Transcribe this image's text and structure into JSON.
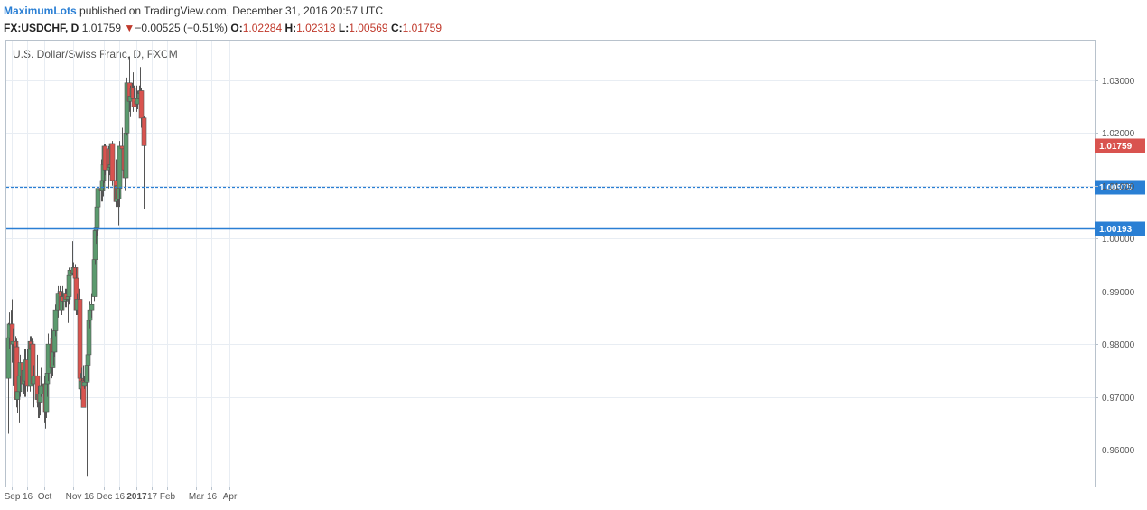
{
  "header": {
    "author": "MaximumLots",
    "published": "published on TradingView.com, December 31, 2016 20:57 UTC",
    "symbol": "FX:USDCHF, D",
    "last": "1.01759",
    "down_arrow": "▼",
    "change": "−0.00525 (−0.51%)",
    "o_label": "O:",
    "o_value": "1.02284",
    "h_label": "H:",
    "h_value": "1.02318",
    "l_label": "L:",
    "l_value": "1.00569",
    "c_label": "C:",
    "c_value": "1.01759"
  },
  "chart_data": {
    "type": "candlestick",
    "title": "U.S. Dollar/Swiss Franc, D, FXCM",
    "ylim": [
      0.953,
      1.0375
    ],
    "y_ticks": [
      0.96,
      0.97,
      0.98,
      0.99,
      1.0,
      1.01,
      1.02,
      1.03
    ],
    "x_ticks": [
      "Sep",
      "16",
      "Oct",
      "Nov",
      "16",
      "Dec",
      "16",
      "2017",
      "17",
      "Feb",
      "Mar",
      "16",
      "Apr"
    ],
    "x_tick_dates": [
      "2016-09-01",
      "2016-09-16",
      "2016-10-03",
      "2016-11-01",
      "2016-11-16",
      "2016-12-01",
      "2016-12-16",
      "2017-01-02",
      "2017-01-17",
      "2017-02-01",
      "2017-03-01",
      "2017-03-16",
      "2017-04-03"
    ],
    "levels": [
      {
        "value": 1.00975,
        "label": "1.00975",
        "style": "dashed",
        "color": "#2a7fd4"
      },
      {
        "value": 1.00193,
        "label": "1.00193",
        "style": "solid",
        "color": "#2a7fd4"
      }
    ],
    "last_price": {
      "value": 1.01759,
      "label": "1.01759",
      "color": "#d9534f"
    },
    "colors": {
      "up": "#5b9a6e",
      "down": "#d9534f",
      "wick": "#555555",
      "grid": "#e8edf3",
      "axis": "#b8c2cc"
    },
    "candles": [
      {
        "date": "2016-08-29",
        "o": 0.9735,
        "h": 0.984,
        "l": 0.963,
        "c": 0.9812
      },
      {
        "date": "2016-08-30",
        "o": 0.9812,
        "h": 0.986,
        "l": 0.979,
        "c": 0.9838
      },
      {
        "date": "2016-08-31",
        "o": 0.9838,
        "h": 0.9865,
        "l": 0.981,
        "c": 0.9838
      },
      {
        "date": "2016-09-01",
        "o": 0.9838,
        "h": 0.9885,
        "l": 0.9765,
        "c": 0.98
      },
      {
        "date": "2016-09-02",
        "o": 0.98,
        "h": 0.983,
        "l": 0.972,
        "c": 0.9805
      },
      {
        "date": "2016-09-05",
        "o": 0.9805,
        "h": 0.9815,
        "l": 0.977,
        "c": 0.9795
      },
      {
        "date": "2016-09-06",
        "o": 0.9795,
        "h": 0.981,
        "l": 0.968,
        "c": 0.9695
      },
      {
        "date": "2016-09-07",
        "o": 0.9695,
        "h": 0.973,
        "l": 0.967,
        "c": 0.971
      },
      {
        "date": "2016-09-08",
        "o": 0.971,
        "h": 0.9765,
        "l": 0.965,
        "c": 0.974
      },
      {
        "date": "2016-09-09",
        "o": 0.974,
        "h": 0.978,
        "l": 0.97,
        "c": 0.9765
      },
      {
        "date": "2016-09-12",
        "o": 0.9765,
        "h": 0.9795,
        "l": 0.9715,
        "c": 0.9725
      },
      {
        "date": "2016-09-13",
        "o": 0.9725,
        "h": 0.9765,
        "l": 0.9705,
        "c": 0.975
      },
      {
        "date": "2016-09-14",
        "o": 0.975,
        "h": 0.979,
        "l": 0.97,
        "c": 0.973
      },
      {
        "date": "2016-09-15",
        "o": 0.973,
        "h": 0.979,
        "l": 0.97,
        "c": 0.977
      },
      {
        "date": "2016-09-16",
        "o": 0.977,
        "h": 0.979,
        "l": 0.971,
        "c": 0.972
      },
      {
        "date": "2016-09-19",
        "o": 0.972,
        "h": 0.9815,
        "l": 0.971,
        "c": 0.9805
      },
      {
        "date": "2016-09-20",
        "o": 0.9805,
        "h": 0.9815,
        "l": 0.977,
        "c": 0.979
      },
      {
        "date": "2016-09-21",
        "o": 0.979,
        "h": 0.981,
        "l": 0.976,
        "c": 0.98
      },
      {
        "date": "2016-09-22",
        "o": 0.98,
        "h": 0.9805,
        "l": 0.9715,
        "c": 0.9725
      },
      {
        "date": "2016-09-23",
        "o": 0.9725,
        "h": 0.976,
        "l": 0.968,
        "c": 0.974
      },
      {
        "date": "2016-09-26",
        "o": 0.974,
        "h": 0.978,
        "l": 0.968,
        "c": 0.9695
      },
      {
        "date": "2016-09-27",
        "o": 0.9695,
        "h": 0.972,
        "l": 0.966,
        "c": 0.9705
      },
      {
        "date": "2016-09-28",
        "o": 0.9705,
        "h": 0.972,
        "l": 0.966,
        "c": 0.969
      },
      {
        "date": "2016-09-29",
        "o": 0.969,
        "h": 0.972,
        "l": 0.9665,
        "c": 0.9705
      },
      {
        "date": "2016-09-30",
        "o": 0.9705,
        "h": 0.9755,
        "l": 0.97,
        "c": 0.972
      },
      {
        "date": "2016-10-03",
        "o": 0.972,
        "h": 0.974,
        "l": 0.965,
        "c": 0.9725
      },
      {
        "date": "2016-10-04",
        "o": 0.9725,
        "h": 0.973,
        "l": 0.964,
        "c": 0.9672
      },
      {
        "date": "2016-10-05",
        "o": 0.9672,
        "h": 0.973,
        "l": 0.966,
        "c": 0.9725
      },
      {
        "date": "2016-10-06",
        "o": 0.9725,
        "h": 0.976,
        "l": 0.97,
        "c": 0.9745
      },
      {
        "date": "2016-10-07",
        "o": 0.9745,
        "h": 0.982,
        "l": 0.973,
        "c": 0.98
      },
      {
        "date": "2016-10-10",
        "o": 0.98,
        "h": 0.983,
        "l": 0.9735,
        "c": 0.9755
      },
      {
        "date": "2016-10-11",
        "o": 0.9755,
        "h": 0.9815,
        "l": 0.974,
        "c": 0.981
      },
      {
        "date": "2016-10-12",
        "o": 0.981,
        "h": 0.9835,
        "l": 0.976,
        "c": 0.9785
      },
      {
        "date": "2016-10-13",
        "o": 0.9785,
        "h": 0.983,
        "l": 0.9775,
        "c": 0.9825
      },
      {
        "date": "2016-10-14",
        "o": 0.9825,
        "h": 0.9875,
        "l": 0.9815,
        "c": 0.9865
      },
      {
        "date": "2016-10-17",
        "o": 0.9865,
        "h": 0.991,
        "l": 0.985,
        "c": 0.9895
      },
      {
        "date": "2016-10-18",
        "o": 0.9895,
        "h": 0.991,
        "l": 0.988,
        "c": 0.99
      },
      {
        "date": "2016-10-19",
        "o": 0.99,
        "h": 0.991,
        "l": 0.9855,
        "c": 0.9865
      },
      {
        "date": "2016-10-20",
        "o": 0.9865,
        "h": 0.99,
        "l": 0.9855,
        "c": 0.989
      },
      {
        "date": "2016-10-21",
        "o": 0.989,
        "h": 0.991,
        "l": 0.9865,
        "c": 0.988
      },
      {
        "date": "2016-10-24",
        "o": 0.988,
        "h": 0.9905,
        "l": 0.987,
        "c": 0.9895
      },
      {
        "date": "2016-10-25",
        "o": 0.9895,
        "h": 0.9905,
        "l": 0.987,
        "c": 0.9885
      },
      {
        "date": "2016-10-26",
        "o": 0.9885,
        "h": 0.99,
        "l": 0.984,
        "c": 0.989
      },
      {
        "date": "2016-10-27",
        "o": 0.989,
        "h": 0.9945,
        "l": 0.9875,
        "c": 0.993
      },
      {
        "date": "2016-10-28",
        "o": 0.993,
        "h": 0.9955,
        "l": 0.9915,
        "c": 0.994
      },
      {
        "date": "2016-10-31",
        "o": 0.994,
        "h": 0.9995,
        "l": 0.993,
        "c": 0.9935
      },
      {
        "date": "2016-11-01",
        "o": 0.9935,
        "h": 0.9955,
        "l": 0.9925,
        "c": 0.9945
      },
      {
        "date": "2016-11-02",
        "o": 0.9945,
        "h": 0.995,
        "l": 0.9915,
        "c": 0.9925
      },
      {
        "date": "2016-11-03",
        "o": 0.9925,
        "h": 0.9945,
        "l": 0.9855,
        "c": 0.9865
      },
      {
        "date": "2016-11-04",
        "o": 0.9865,
        "h": 0.9895,
        "l": 0.9855,
        "c": 0.9885
      },
      {
        "date": "2016-11-07",
        "o": 0.9885,
        "h": 0.9905,
        "l": 0.972,
        "c": 0.9735
      },
      {
        "date": "2016-11-08",
        "o": 0.9735,
        "h": 0.9745,
        "l": 0.9695,
        "c": 0.9715
      },
      {
        "date": "2016-11-09",
        "o": 0.9715,
        "h": 0.9755,
        "l": 0.97,
        "c": 0.973
      },
      {
        "date": "2016-11-10",
        "o": 0.973,
        "h": 0.976,
        "l": 0.968,
        "c": 0.968
      },
      {
        "date": "2016-11-11",
        "o": 0.972,
        "h": 0.974,
        "l": 0.9715,
        "c": 0.9728
      },
      {
        "date": "2016-11-14",
        "o": 0.9728,
        "h": 0.977,
        "l": 0.955,
        "c": 0.976
      },
      {
        "date": "2016-11-15",
        "o": 0.976,
        "h": 0.979,
        "l": 0.973,
        "c": 0.978
      },
      {
        "date": "2016-11-16",
        "o": 0.978,
        "h": 0.9855,
        "l": 0.977,
        "c": 0.9845
      },
      {
        "date": "2016-11-17",
        "o": 0.9845,
        "h": 0.988,
        "l": 0.983,
        "c": 0.9865
      },
      {
        "date": "2016-11-18",
        "o": 0.9865,
        "h": 0.9895,
        "l": 0.985,
        "c": 0.9875
      },
      {
        "date": "2016-11-21",
        "o": 0.989,
        "h": 0.9975,
        "l": 0.988,
        "c": 0.996
      },
      {
        "date": "2016-11-22",
        "o": 0.996,
        "h": 1.0025,
        "l": 0.995,
        "c": 1.0015
      },
      {
        "date": "2016-11-23",
        "o": 1.0015,
        "h": 1.004,
        "l": 0.999,
        "c": 1.002
      },
      {
        "date": "2016-11-24",
        "o": 1.002,
        "h": 1.008,
        "l": 1.0005,
        "c": 1.006
      },
      {
        "date": "2016-11-25",
        "o": 1.006,
        "h": 1.011,
        "l": 1.0055,
        "c": 1.0095
      },
      {
        "date": "2016-11-28",
        "o": 1.0095,
        "h": 1.015,
        "l": 1.007,
        "c": 1.009
      },
      {
        "date": "2016-11-29",
        "o": 1.009,
        "h": 1.012,
        "l": 1.007,
        "c": 1.011
      },
      {
        "date": "2016-11-30",
        "o": 1.011,
        "h": 1.015,
        "l": 1.008,
        "c": 1.014
      },
      {
        "date": "2016-12-01",
        "o": 1.014,
        "h": 1.018,
        "l": 1.0105,
        "c": 1.0175
      },
      {
        "date": "2016-12-02",
        "o": 1.0175,
        "h": 1.018,
        "l": 1.012,
        "c": 1.013
      },
      {
        "date": "2016-12-05",
        "o": 1.013,
        "h": 1.0175,
        "l": 1.0095,
        "c": 1.017
      },
      {
        "date": "2016-12-06",
        "o": 1.017,
        "h": 1.018,
        "l": 1.012,
        "c": 1.0135
      },
      {
        "date": "2016-12-07",
        "o": 1.0135,
        "h": 1.0165,
        "l": 1.0115,
        "c": 1.014
      },
      {
        "date": "2016-12-08",
        "o": 1.014,
        "h": 1.018,
        "l": 1.0125,
        "c": 1.018
      },
      {
        "date": "2016-12-09",
        "o": 1.018,
        "h": 1.0185,
        "l": 1.01,
        "c": 1.011
      },
      {
        "date": "2016-12-12",
        "o": 1.011,
        "h": 1.015,
        "l": 1.006,
        "c": 1.007
      },
      {
        "date": "2016-12-13",
        "o": 1.007,
        "h": 1.011,
        "l": 1.006,
        "c": 1.01
      },
      {
        "date": "2016-12-14",
        "o": 1.01,
        "h": 1.013,
        "l": 1.006,
        "c": 1.0075
      },
      {
        "date": "2016-12-15",
        "o": 1.0075,
        "h": 1.011,
        "l": 1.0025,
        "c": 1.0095
      },
      {
        "date": "2016-12-16",
        "o": 1.0095,
        "h": 1.0185,
        "l": 1.006,
        "c": 1.0175
      },
      {
        "date": "2016-12-19",
        "o": 1.0175,
        "h": 1.021,
        "l": 1.016,
        "c": 1.017
      },
      {
        "date": "2016-12-20",
        "o": 1.017,
        "h": 1.0195,
        "l": 1.0125,
        "c": 1.013
      },
      {
        "date": "2016-12-21",
        "o": 1.013,
        "h": 1.0155,
        "l": 1.009,
        "c": 1.0115
      },
      {
        "date": "2016-12-22",
        "o": 1.0115,
        "h": 1.021,
        "l": 1.0095,
        "c": 1.02
      },
      {
        "date": "2016-12-23",
        "o": 1.02,
        "h": 1.0305,
        "l": 1.0195,
        "c": 1.0295
      },
      {
        "date": "2016-12-26",
        "o": 1.0295,
        "h": 1.0345,
        "l": 1.024,
        "c": 1.026
      },
      {
        "date": "2016-12-27",
        "o": 1.026,
        "h": 1.029,
        "l": 1.023,
        "c": 1.027
      },
      {
        "date": "2016-12-28",
        "o": 1.027,
        "h": 1.0295,
        "l": 1.025,
        "c": 1.0285
      },
      {
        "date": "2016-12-29",
        "o": 1.0285,
        "h": 1.0315,
        "l": 1.024,
        "c": 1.0265
      },
      {
        "date": "2016-12-30",
        "o": 1.0265,
        "h": 1.029,
        "l": 1.025,
        "c": 1.025
      },
      {
        "date": "2017-01-02",
        "o": 1.026,
        "h": 1.029,
        "l": 1.024,
        "c": 1.0255
      },
      {
        "date": "2017-01-03",
        "o": 1.0255,
        "h": 1.028,
        "l": 1.0245,
        "c": 1.0265
      },
      {
        "date": "2017-01-04",
        "o": 1.0265,
        "h": 1.029,
        "l": 1.025,
        "c": 1.0275
      },
      {
        "date": "2017-01-05",
        "o": 1.0275,
        "h": 1.0325,
        "l": 1.026,
        "c": 1.028
      },
      {
        "date": "2017-01-06",
        "o": 1.028,
        "h": 1.0285,
        "l": 1.021,
        "c": 1.0228
      },
      {
        "date": "2017-01-09",
        "o": 1.02284,
        "h": 1.02318,
        "l": 1.00569,
        "c": 1.01759
      }
    ]
  }
}
